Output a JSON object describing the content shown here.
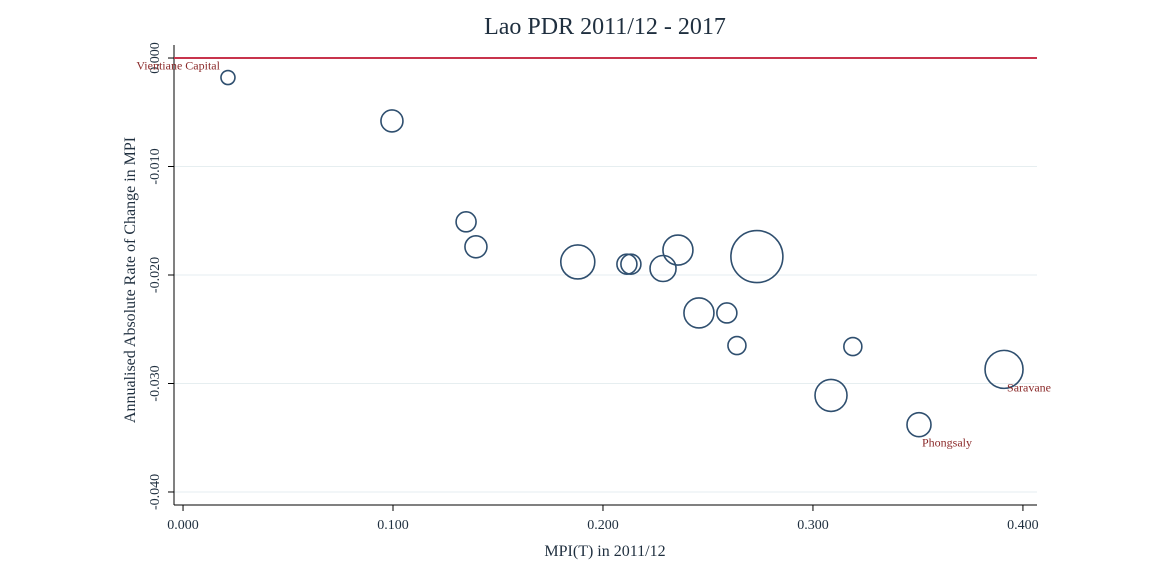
{
  "chart_data": {
    "type": "scatter",
    "title": "Lao PDR 2011/12 - 2017",
    "x_label": "MPI(T) in 2011/12",
    "y_label": "Annualised Absolute Rate of Change in MPI",
    "x": [
      0.0214,
      0.0995,
      0.1348,
      0.1395,
      0.188,
      0.2114,
      0.2133,
      0.2286,
      0.2357,
      0.2733,
      0.2457,
      0.259,
      0.2638,
      0.319,
      0.3086,
      0.3505,
      0.391
    ],
    "series": [
      {
        "name": "Provinces",
        "color": "#2f4f6f",
        "values": [
          -0.0018,
          -0.0058,
          -0.0151,
          -0.0174,
          -0.0188,
          -0.019,
          -0.019,
          -0.0194,
          -0.0177,
          -0.0183,
          -0.0235,
          -0.0235,
          -0.0265,
          -0.0266,
          -0.0311,
          -0.0338,
          -0.0287
        ],
        "sizes": [
          7,
          11,
          10,
          11,
          17,
          10,
          10,
          13,
          15,
          26,
          15,
          10,
          9,
          9,
          16,
          12,
          19
        ],
        "point_labels": [
          "Vientiane Capital",
          null,
          null,
          null,
          null,
          null,
          null,
          null,
          null,
          null,
          null,
          null,
          null,
          null,
          null,
          "Phongsaly",
          "Saravane"
        ]
      }
    ],
    "xlim": [
      -0.0043,
      0.4067
    ],
    "ylim": [
      -0.0412,
      0.0012
    ],
    "xticks": [
      {
        "value": 0,
        "label": "0.000"
      },
      {
        "value": 0.1,
        "label": "0.100"
      },
      {
        "value": 0.2,
        "label": "0.200"
      },
      {
        "value": 0.3,
        "label": "0.300"
      },
      {
        "value": 0.4,
        "label": "0.400"
      }
    ],
    "yticks": [
      {
        "value": 0,
        "label": "0.000"
      },
      {
        "value": -0.01,
        "label": "-0.010"
      },
      {
        "value": -0.02,
        "label": "-0.020"
      },
      {
        "value": -0.03,
        "label": "-0.030"
      },
      {
        "value": -0.04,
        "label": "-0.040"
      }
    ],
    "grid": true,
    "reference_line": {
      "y": 0,
      "color": "#c8344c"
    },
    "label_color": "#8b2a2a"
  }
}
